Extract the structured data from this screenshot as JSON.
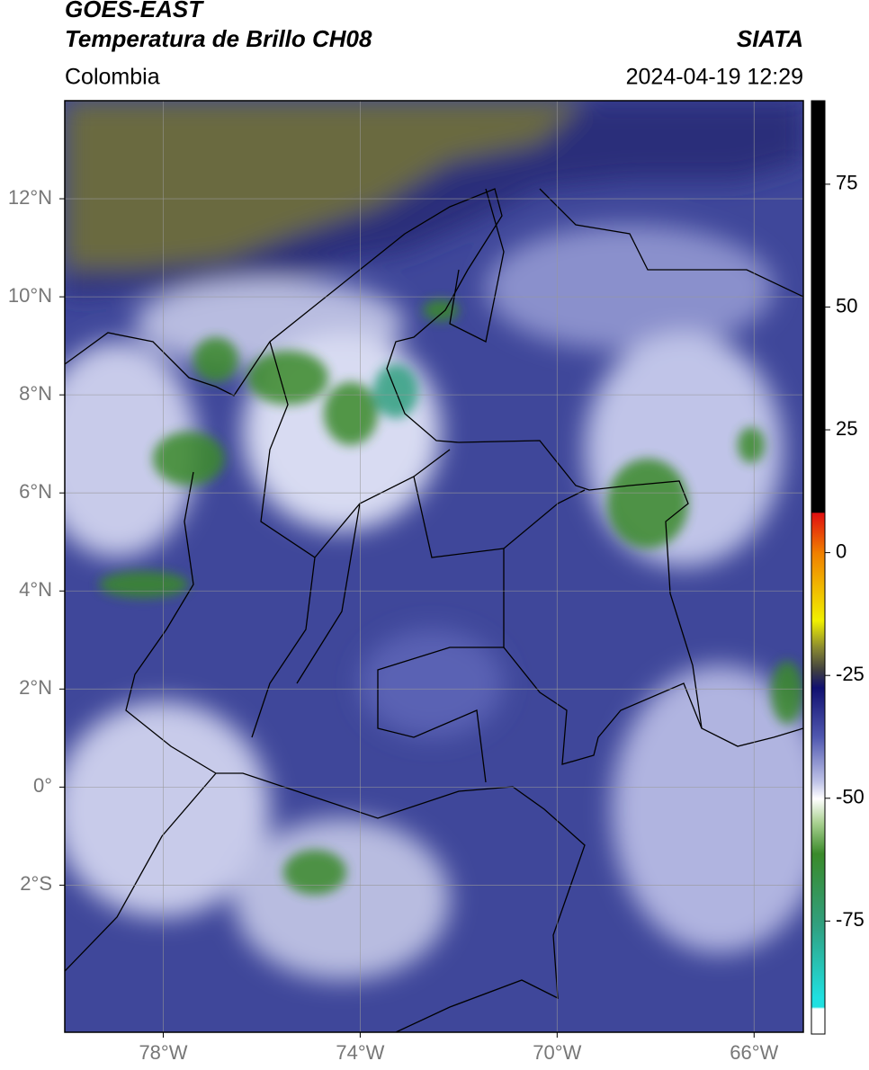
{
  "header": {
    "title": "GOES-EAST",
    "subtitle": "Temperatura de Brillo CH08",
    "source": "SIATA",
    "region": "Colombia",
    "datetime": "2024-04-19 12:29"
  },
  "map": {
    "xlim": [
      -80,
      -65
    ],
    "ylim": [
      -5,
      14
    ],
    "xticks": [
      {
        "value": -78,
        "label": "78°W"
      },
      {
        "value": -74,
        "label": "74°W"
      },
      {
        "value": -70,
        "label": "70°W"
      },
      {
        "value": -66,
        "label": "66°W"
      }
    ],
    "yticks": [
      {
        "value": 12,
        "label": "12°N"
      },
      {
        "value": 10,
        "label": "10°N"
      },
      {
        "value": 8,
        "label": "8°N"
      },
      {
        "value": 6,
        "label": "6°N"
      },
      {
        "value": 4,
        "label": "4°N"
      },
      {
        "value": 2,
        "label": "2°N"
      },
      {
        "value": 0,
        "label": "0°"
      },
      {
        "value": -2,
        "label": "2°S"
      }
    ],
    "grid": true
  },
  "colorbar": {
    "lim": [
      -98,
      92
    ],
    "ticks": [
      75,
      50,
      25,
      0,
      -25,
      -50,
      -75
    ]
  }
}
